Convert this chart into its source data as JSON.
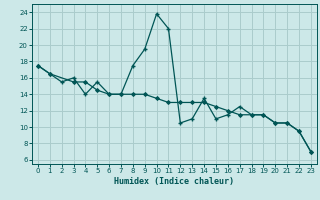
{
  "xlabel": "Humidex (Indice chaleur)",
  "bg_color": "#cce8e8",
  "grid_color": "#aacccc",
  "line_color": "#005555",
  "xlim": [
    -0.5,
    23.5
  ],
  "ylim": [
    5.5,
    25
  ],
  "xticks": [
    0,
    1,
    2,
    3,
    4,
    5,
    6,
    7,
    8,
    9,
    10,
    11,
    12,
    13,
    14,
    15,
    16,
    17,
    18,
    19,
    20,
    21,
    22,
    23
  ],
  "yticks": [
    6,
    8,
    10,
    12,
    14,
    16,
    18,
    20,
    22,
    24
  ],
  "series1_x": [
    0,
    1,
    2,
    3,
    4,
    5,
    6,
    7,
    8,
    9,
    10,
    11,
    12,
    13,
    14,
    15,
    16,
    17,
    18,
    19,
    20,
    21,
    22,
    23
  ],
  "series1_y": [
    17.5,
    16.5,
    15.5,
    16.0,
    14.0,
    15.5,
    14.0,
    14.0,
    17.5,
    19.5,
    23.8,
    22.0,
    10.5,
    11.0,
    13.5,
    11.0,
    11.5,
    12.5,
    11.5,
    11.5,
    10.5,
    10.5,
    9.5,
    7.0
  ],
  "series2_x": [
    0,
    1,
    3,
    4,
    5,
    6,
    7,
    8,
    9,
    10,
    11,
    12,
    13,
    14,
    15,
    16,
    17,
    18,
    19,
    20,
    21,
    22,
    23
  ],
  "series2_y": [
    17.5,
    16.5,
    15.5,
    15.5,
    14.5,
    14.0,
    14.0,
    14.0,
    14.0,
    13.5,
    13.0,
    13.0,
    13.0,
    13.0,
    12.5,
    12.0,
    11.5,
    11.5,
    11.5,
    10.5,
    10.5,
    9.5,
    7.0
  ]
}
